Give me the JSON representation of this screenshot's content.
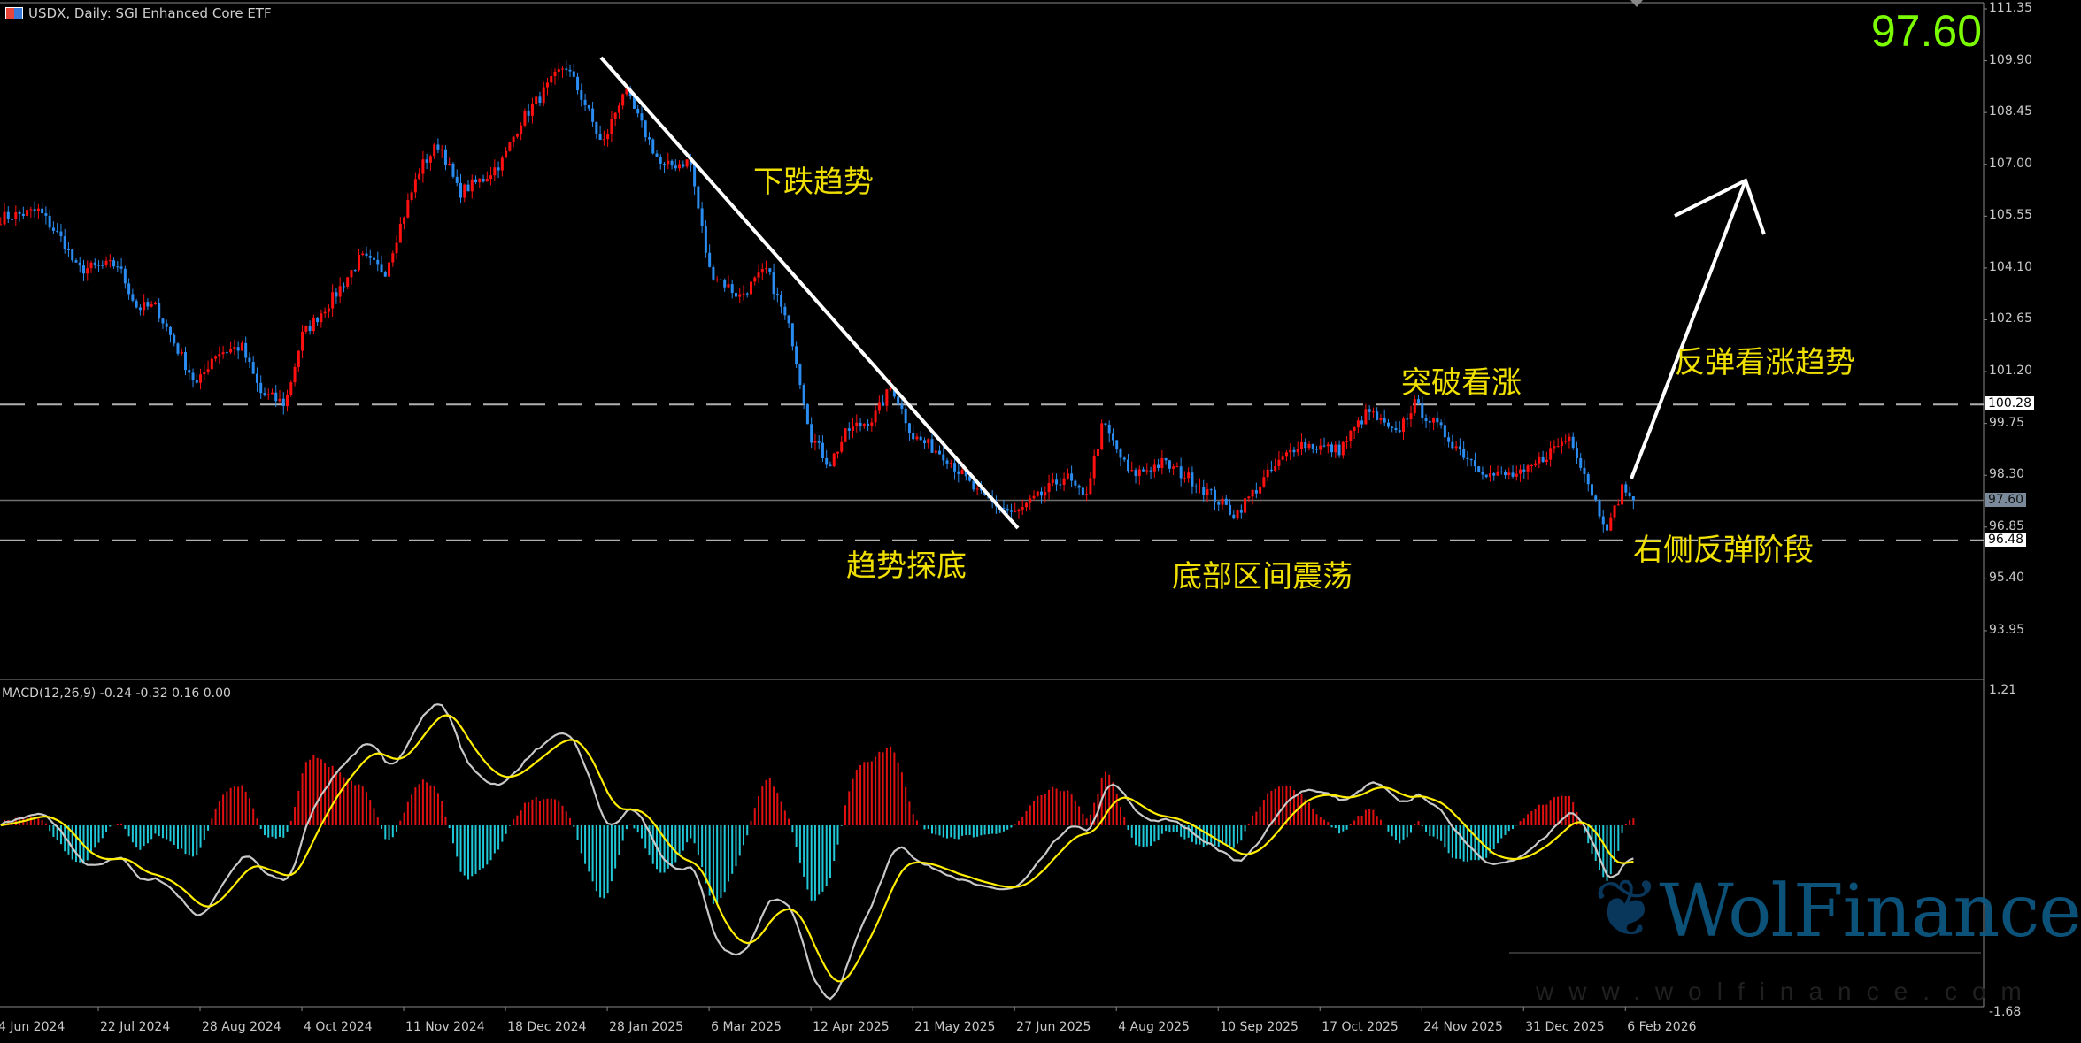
{
  "header": {
    "symbol_title": "USDX, Daily:  SGI Enhanced Core ETF",
    "icon": "chart-flag-icon"
  },
  "current_price": "97.60",
  "macd_title": "MACD(12,26,9) -0.24 -0.32 0.16 0.00",
  "annotations": {
    "downtrend": "下跌趋势",
    "bottoming": "趋势探底",
    "range": "底部区间震荡",
    "breakout": "突破看涨",
    "rebound_trend": "反弹看涨趋势",
    "right_rebound": "右侧反弹阶段"
  },
  "watermark": {
    "brand": "WolFinance",
    "url": "www.wolfinance.com"
  },
  "colors": {
    "bull": "#ff1010",
    "bear": "#2a8cf0",
    "macd_line": "#c8c8c8",
    "signal_line": "#ffee00",
    "hist_pos": "#e01010",
    "hist_neg": "#20c8d8",
    "annotation": "#f0e000",
    "price_big": "#7cfc00"
  },
  "chart_data": [
    {
      "type": "candlestick",
      "price_axis_ticks": [
        "111.35",
        "109.90",
        "108.45",
        "107.00",
        "105.55",
        "104.10",
        "102.65",
        "101.20",
        "99.75",
        "98.30",
        "96.85",
        "95.40",
        "93.95"
      ],
      "ylim": [
        93.2,
        111.35
      ],
      "x_ticks": [
        "4 Jun 2024",
        "22 Jul 2024",
        "28 Aug 2024",
        "4 Oct 2024",
        "11 Nov 2024",
        "18 Dec 2024",
        "28 Jan 2025",
        "6 Mar 2025",
        "12 Apr 2025",
        "21 May 2025",
        "27 Jun 2025",
        "4 Aug 2025",
        "10 Sep 2025",
        "17 Oct 2025",
        "24 Nov 2025",
        "31 Dec 2025",
        "6 Feb 2026"
      ],
      "x_tick_dates": [
        "2024-06-04",
        "2024-07-22",
        "2024-08-28",
        "2024-10-04",
        "2024-11-11",
        "2024-12-18",
        "2025-01-28",
        "2025-03-06",
        "2025-04-12",
        "2025-05-21",
        "2025-06-27",
        "2025-08-04",
        "2025-09-10",
        "2025-10-17",
        "2025-11-24",
        "2025-12-31",
        "2026-02-06"
      ],
      "horizontal_levels": [
        {
          "value": 100.28,
          "label": "100.28",
          "style": "dashed"
        },
        {
          "value": 97.6,
          "label": "97.60",
          "style": "solid"
        },
        {
          "value": 96.48,
          "label": "96.48",
          "style": "dashed"
        }
      ],
      "close_keypoints": [
        [
          "2024-06-06",
          105.5
        ],
        [
          "2024-06-24",
          105.7
        ],
        [
          "2024-07-06",
          104.8
        ],
        [
          "2024-07-12",
          104.05
        ],
        [
          "2024-07-29",
          104.2
        ],
        [
          "2024-08-05",
          103.0
        ],
        [
          "2024-08-12",
          103.0
        ],
        [
          "2024-08-22",
          101.5
        ],
        [
          "2024-08-27",
          100.8
        ],
        [
          "2024-09-02",
          101.7
        ],
        [
          "2024-09-12",
          101.9
        ],
        [
          "2024-09-19",
          100.6
        ],
        [
          "2024-09-28",
          100.3
        ],
        [
          "2024-10-04",
          102.2
        ],
        [
          "2024-10-16",
          103.3
        ],
        [
          "2024-10-26",
          104.4
        ],
        [
          "2024-11-04",
          104.0
        ],
        [
          "2024-11-12",
          105.8
        ],
        [
          "2024-11-17",
          106.9
        ],
        [
          "2024-11-24",
          107.6
        ],
        [
          "2024-12-01",
          106.2
        ],
        [
          "2024-12-10",
          106.6
        ],
        [
          "2024-12-17",
          107.1
        ],
        [
          "2024-12-24",
          108.2
        ],
        [
          "2025-01-01",
          108.9
        ],
        [
          "2025-01-11",
          109.8
        ],
        [
          "2025-01-19",
          108.7
        ],
        [
          "2025-01-26",
          107.5
        ],
        [
          "2025-02-03",
          109.1
        ],
        [
          "2025-02-10",
          108.0
        ],
        [
          "2025-02-17",
          106.9
        ],
        [
          "2025-02-27",
          107.1
        ],
        [
          "2025-03-06",
          104.05
        ],
        [
          "2025-03-17",
          103.3
        ],
        [
          "2025-03-27",
          104.05
        ],
        [
          "2025-04-05",
          102.2
        ],
        [
          "2025-04-12",
          99.4
        ],
        [
          "2025-04-19",
          98.6
        ],
        [
          "2025-04-26",
          99.55
        ],
        [
          "2025-05-06",
          99.9
        ],
        [
          "2025-05-13",
          100.8
        ],
        [
          "2025-05-21",
          99.4
        ],
        [
          "2025-06-02",
          98.85
        ],
        [
          "2025-06-14",
          97.75
        ],
        [
          "2025-06-27",
          97.2
        ],
        [
          "2025-07-07",
          97.75
        ],
        [
          "2025-07-16",
          98.3
        ],
        [
          "2025-07-23",
          97.6
        ],
        [
          "2025-07-30",
          99.75
        ],
        [
          "2025-08-09",
          98.3
        ],
        [
          "2025-08-21",
          98.65
        ],
        [
          "2025-09-02",
          98.1
        ],
        [
          "2025-09-16",
          97.2
        ],
        [
          "2025-09-28",
          98.3
        ],
        [
          "2025-10-09",
          99.2
        ],
        [
          "2025-10-24",
          99.0
        ],
        [
          "2025-11-04",
          100.1
        ],
        [
          "2025-11-14",
          99.4
        ],
        [
          "2025-11-21",
          100.3
        ],
        [
          "2025-12-01",
          99.55
        ],
        [
          "2025-12-10",
          98.85
        ],
        [
          "2025-12-19",
          98.3
        ],
        [
          "2025-12-31",
          98.3
        ],
        [
          "2026-01-10",
          99.0
        ],
        [
          "2026-01-17",
          99.4
        ],
        [
          "2026-01-24",
          98.0
        ],
        [
          "2026-01-28",
          97.2
        ],
        [
          "2026-01-31",
          96.85
        ],
        [
          "2026-02-05",
          98.0
        ],
        [
          "2026-02-09",
          97.6
        ]
      ]
    },
    {
      "type": "macd",
      "params": "12,26,9",
      "axis_ticks": [
        "1.21",
        "-1.68"
      ],
      "ylim": [
        -1.68,
        1.21
      ],
      "values": {
        "macd": -0.24,
        "signal": -0.32,
        "histogram": 0.16,
        "extra": 0.0
      }
    }
  ]
}
